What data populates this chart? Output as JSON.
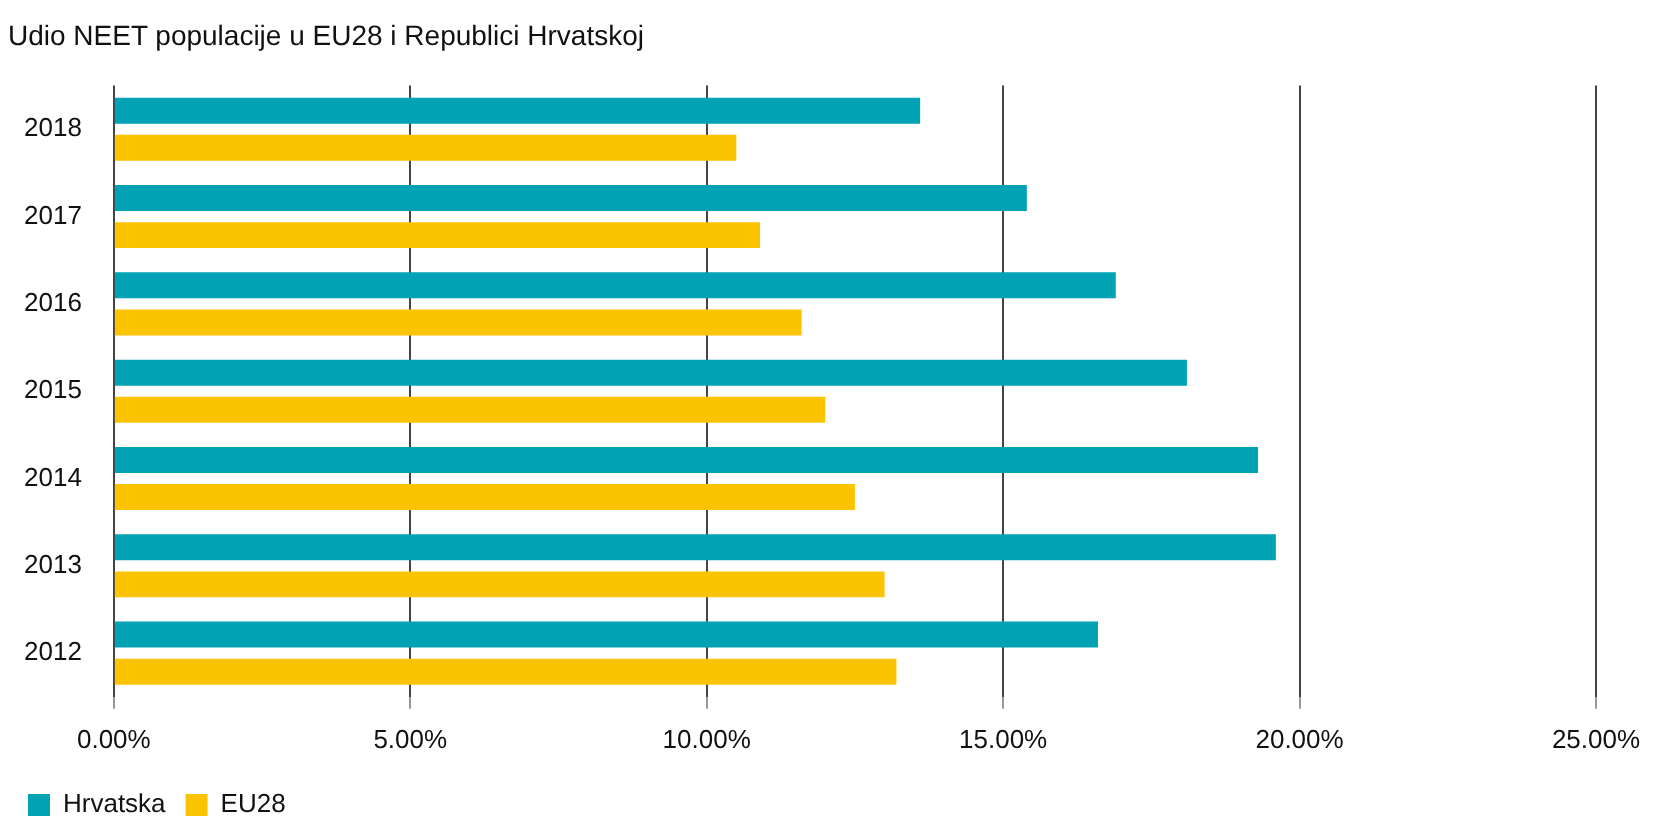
{
  "chart_data": {
    "type": "bar",
    "orientation": "horizontal",
    "title": "Udio NEET populacije u EU28 i Republici Hrvatskoj",
    "categories": [
      "2018",
      "2017",
      "2016",
      "2015",
      "2014",
      "2013",
      "2012"
    ],
    "series": [
      {
        "name": "Hrvatska",
        "color": "#00a2b4",
        "values": [
          13.6,
          15.4,
          16.9,
          18.1,
          19.3,
          19.6,
          16.6
        ]
      },
      {
        "name": "EU28",
        "color": "#fbc300",
        "values": [
          10.5,
          10.9,
          11.6,
          12.0,
          12.5,
          13.0,
          13.2
        ]
      }
    ],
    "xlim": [
      0,
      25
    ],
    "xticks": [
      {
        "value": 0,
        "label": "0.00%"
      },
      {
        "value": 5,
        "label": "5.00%"
      },
      {
        "value": 10,
        "label": "10.00%"
      },
      {
        "value": 15,
        "label": "15.00%"
      },
      {
        "value": 20,
        "label": "20.00%"
      },
      {
        "value": 25,
        "label": "25.00%"
      }
    ],
    "grid": "x",
    "legend": "bottom left"
  }
}
